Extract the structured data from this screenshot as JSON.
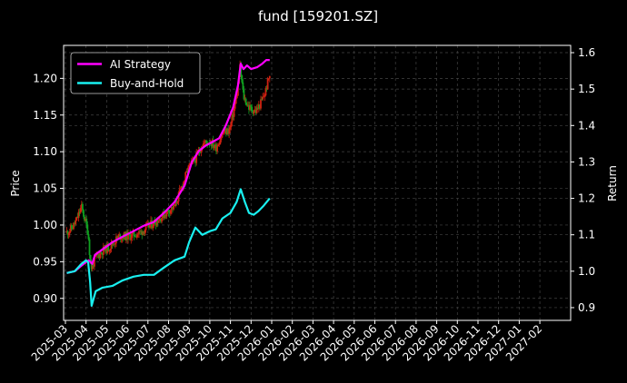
{
  "chart_data": {
    "type": "line",
    "title": "fund [159201.SZ]",
    "ylabel_left": "Price",
    "ylabel_right": "Return",
    "grid": true,
    "legend_position": "top-left",
    "background": "#000000",
    "x_ticks": [
      "2025-03",
      "2025-04",
      "2025-05",
      "2025-06",
      "2025-07",
      "2025-08",
      "2025-09",
      "2025-10",
      "2025-11",
      "2025-12",
      "2026-01",
      "2026-02",
      "2026-03",
      "2026-04",
      "2026-05",
      "2026-06",
      "2026-07",
      "2026-08",
      "2026-09",
      "2026-10",
      "2026-11",
      "2026-12",
      "2027-01",
      "2027-02"
    ],
    "left_axis": {
      "ylim": [
        0.87,
        1.245
      ],
      "ticks": [
        0.9,
        0.95,
        1.0,
        1.05,
        1.1,
        1.15,
        1.2
      ]
    },
    "right_axis": {
      "ylim": [
        0.865,
        1.62
      ],
      "ticks": [
        0.9,
        1.0,
        1.1,
        1.2,
        1.3,
        1.4,
        1.5,
        1.6
      ]
    },
    "candles": {
      "up_color": "#d02010",
      "down_color": "#10a020",
      "x_start": "2025-03-03",
      "x_end": "2025-12-29",
      "close_keypoints": [
        [
          "2025-03-03",
          0.99
        ],
        [
          "2025-03-10",
          0.995
        ],
        [
          "2025-03-17",
          1.005
        ],
        [
          "2025-03-25",
          1.025
        ],
        [
          "2025-03-31",
          1.005
        ],
        [
          "2025-04-04",
          0.99
        ],
        [
          "2025-04-08",
          0.94
        ],
        [
          "2025-04-15",
          0.955
        ],
        [
          "2025-04-25",
          0.965
        ],
        [
          "2025-05-05",
          0.97
        ],
        [
          "2025-05-20",
          0.985
        ],
        [
          "2025-06-05",
          0.985
        ],
        [
          "2025-06-20",
          0.99
        ],
        [
          "2025-07-05",
          1.0
        ],
        [
          "2025-07-20",
          1.01
        ],
        [
          "2025-08-01",
          1.02
        ],
        [
          "2025-08-10",
          1.025
        ],
        [
          "2025-08-20",
          1.05
        ],
        [
          "2025-09-01",
          1.08
        ],
        [
          "2025-09-10",
          1.09
        ],
        [
          "2025-09-20",
          1.11
        ],
        [
          "2025-10-01",
          1.115
        ],
        [
          "2025-10-10",
          1.105
        ],
        [
          "2025-10-20",
          1.125
        ],
        [
          "2025-10-31",
          1.13
        ],
        [
          "2025-11-10",
          1.175
        ],
        [
          "2025-11-15",
          1.215
        ],
        [
          "2025-11-20",
          1.175
        ],
        [
          "2025-11-28",
          1.16
        ],
        [
          "2025-12-08",
          1.155
        ],
        [
          "2025-12-15",
          1.165
        ],
        [
          "2025-12-22",
          1.18
        ],
        [
          "2025-12-29",
          1.205
        ]
      ]
    },
    "series": [
      {
        "name": "AI Strategy",
        "color": "#ff00ff",
        "axis": "right",
        "points": [
          [
            "2025-03-03",
            0.995
          ],
          [
            "2025-03-15",
            1.0
          ],
          [
            "2025-03-25",
            1.015
          ],
          [
            "2025-04-01",
            1.025
          ],
          [
            "2025-04-05",
            1.03
          ],
          [
            "2025-04-10",
            1.02
          ],
          [
            "2025-04-14",
            1.045
          ],
          [
            "2025-04-25",
            1.06
          ],
          [
            "2025-05-10",
            1.08
          ],
          [
            "2025-05-25",
            1.095
          ],
          [
            "2025-06-10",
            1.11
          ],
          [
            "2025-06-25",
            1.125
          ],
          [
            "2025-07-10",
            1.135
          ],
          [
            "2025-07-25",
            1.16
          ],
          [
            "2025-08-10",
            1.19
          ],
          [
            "2025-08-25",
            1.235
          ],
          [
            "2025-09-05",
            1.3
          ],
          [
            "2025-09-15",
            1.33
          ],
          [
            "2025-09-25",
            1.345
          ],
          [
            "2025-10-05",
            1.355
          ],
          [
            "2025-10-15",
            1.365
          ],
          [
            "2025-10-25",
            1.4
          ],
          [
            "2025-11-05",
            1.45
          ],
          [
            "2025-11-12",
            1.51
          ],
          [
            "2025-11-16",
            1.57
          ],
          [
            "2025-11-20",
            1.555
          ],
          [
            "2025-11-25",
            1.565
          ],
          [
            "2025-12-01",
            1.555
          ],
          [
            "2025-12-10",
            1.56
          ],
          [
            "2025-12-18",
            1.57
          ],
          [
            "2025-12-24",
            1.58
          ],
          [
            "2025-12-29",
            1.58
          ]
        ]
      },
      {
        "name": "Buy-and-Hold",
        "color": "#19f0f0",
        "axis": "right",
        "points": [
          [
            "2025-03-03",
            0.995
          ],
          [
            "2025-03-15",
            1.0
          ],
          [
            "2025-03-25",
            1.02
          ],
          [
            "2025-04-01",
            1.03
          ],
          [
            "2025-04-04",
            1.025
          ],
          [
            "2025-04-07",
            0.97
          ],
          [
            "2025-04-09",
            0.905
          ],
          [
            "2025-04-15",
            0.945
          ],
          [
            "2025-04-25",
            0.955
          ],
          [
            "2025-05-10",
            0.96
          ],
          [
            "2025-05-25",
            0.975
          ],
          [
            "2025-06-10",
            0.985
          ],
          [
            "2025-06-25",
            0.99
          ],
          [
            "2025-07-10",
            0.99
          ],
          [
            "2025-07-25",
            1.01
          ],
          [
            "2025-08-10",
            1.03
          ],
          [
            "2025-08-25",
            1.04
          ],
          [
            "2025-09-01",
            1.08
          ],
          [
            "2025-09-10",
            1.12
          ],
          [
            "2025-09-20",
            1.1
          ],
          [
            "2025-10-01",
            1.11
          ],
          [
            "2025-10-10",
            1.115
          ],
          [
            "2025-10-20",
            1.145
          ],
          [
            "2025-11-01",
            1.16
          ],
          [
            "2025-11-10",
            1.19
          ],
          [
            "2025-11-16",
            1.225
          ],
          [
            "2025-11-22",
            1.19
          ],
          [
            "2025-11-28",
            1.16
          ],
          [
            "2025-12-05",
            1.155
          ],
          [
            "2025-12-12",
            1.165
          ],
          [
            "2025-12-20",
            1.18
          ],
          [
            "2025-12-29",
            1.2
          ]
        ]
      }
    ]
  }
}
